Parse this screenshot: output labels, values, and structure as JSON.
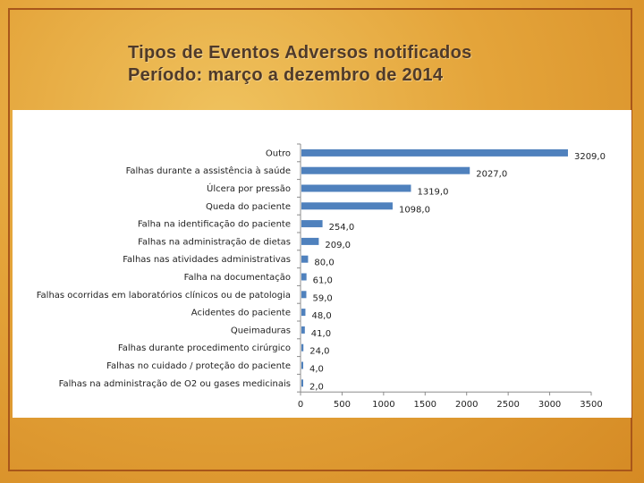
{
  "slide": {
    "title_line1": "Tipos de Eventos Adversos notificados",
    "title_line2": "Período: março a dezembro de 2014"
  },
  "chart_data": {
    "type": "bar",
    "orientation": "horizontal",
    "title": "",
    "xlabel": "",
    "ylabel": "",
    "categories": [
      "Outro",
      "Falhas durante a assistência à saúde",
      "Úlcera por pressão",
      "Queda do paciente",
      "Falha na identificação do paciente",
      "Falhas na administração de dietas",
      "Falhas nas atividades administrativas",
      "Falha na documentação",
      "Falhas ocorridas em laboratórios clínicos ou de patologia",
      "Acidentes do paciente",
      "Queimaduras",
      "Falhas durante procedimento cirúrgico",
      "Falhas no cuidado / proteção do paciente",
      "Falhas na administração de O2 ou gases medicinais"
    ],
    "values": [
      3209,
      2027,
      1319,
      1098,
      254,
      209,
      80,
      61,
      59,
      48,
      41,
      24,
      4,
      2
    ],
    "value_labels": [
      "3209,0",
      "2027,0",
      "1319,0",
      "1098,0",
      "254,0",
      "209,0",
      "80,0",
      "61,0",
      "59,0",
      "48,0",
      "41,0",
      "24,0",
      "4,0",
      "2,0"
    ],
    "xlim": [
      0,
      3500
    ],
    "xticks": [
      0,
      500,
      1000,
      1500,
      2000,
      2500,
      3000,
      3500
    ],
    "xtick_labels": [
      "0",
      "500",
      "1000",
      "1500",
      "2000",
      "2500",
      "3000",
      "3500"
    ],
    "bar_color": "#4f81bd",
    "grid": false,
    "legend": "none"
  }
}
